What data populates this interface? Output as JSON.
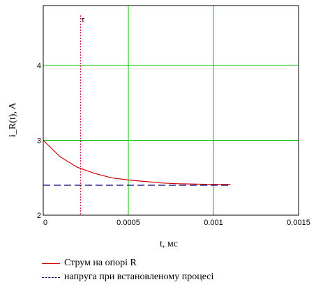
{
  "chart_data": {
    "type": "line",
    "xlabel": "t, мс",
    "ylabel": "i_R(t), A",
    "xlim": [
      0,
      0.0015
    ],
    "ylim": [
      2,
      4.8
    ],
    "x_ticks": [
      "0",
      "0.0005",
      "0.001",
      "0.0015"
    ],
    "y_ticks": [
      "2",
      "3",
      "4"
    ],
    "grid": true,
    "grid_color": "#00c000",
    "legend_position": "bottom",
    "series": [
      {
        "name": "Струм  на опорі R",
        "color": "#cc0000",
        "style": "solid",
        "x": [
          0,
          0.0001,
          0.0002,
          0.0003,
          0.0004,
          0.0005,
          0.0006,
          0.0007,
          0.0008,
          0.0009,
          0.001,
          0.0011
        ],
        "values": [
          3.0,
          2.78,
          2.64,
          2.56,
          2.5,
          2.47,
          2.45,
          2.43,
          2.42,
          2.415,
          2.41,
          2.41
        ]
      },
      {
        "name": "напруга при встановленому процесі",
        "color": "#000080",
        "style": "dashed",
        "x": [
          0,
          0.0011
        ],
        "values": [
          2.4,
          2.4
        ]
      }
    ],
    "marker_line": {
      "x": 0.00022,
      "color": "#cc0000",
      "label": "τ"
    }
  }
}
